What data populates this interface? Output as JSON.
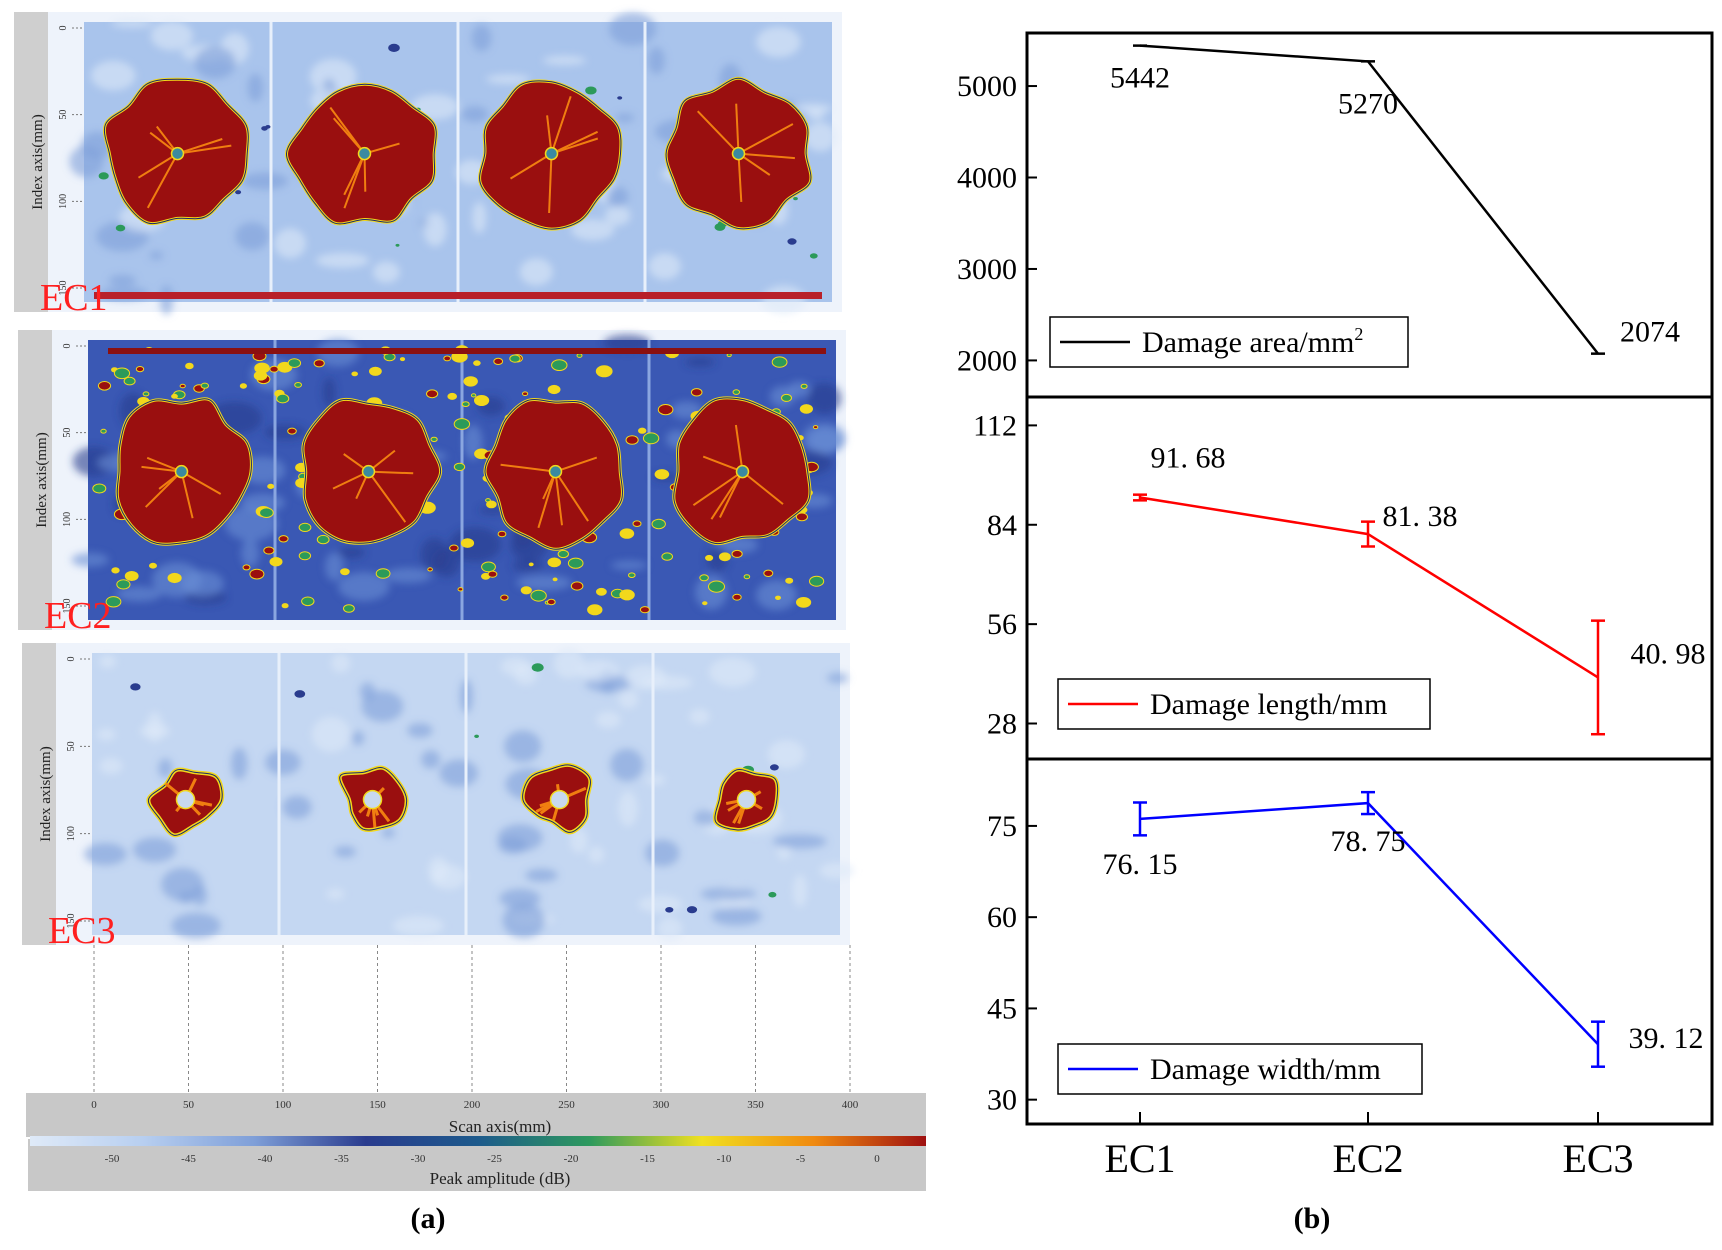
{
  "panel_a": {
    "caption": "(a)",
    "scans": [
      {
        "label": "EC1",
        "y_axis_label": "Index axis(mm)",
        "y_ticks": [
          "0",
          "50",
          "100",
          "150"
        ],
        "variant": "large"
      },
      {
        "label": "EC2",
        "y_axis_label": "Index axis(mm)",
        "y_ticks": [
          "0",
          "50",
          "100",
          "150"
        ],
        "variant": "noisy"
      },
      {
        "label": "EC3",
        "y_axis_label": "Index axis(mm)",
        "y_ticks": [
          "0",
          "50",
          "100",
          "150"
        ],
        "variant": "small"
      }
    ],
    "scan_axis": {
      "label": "Scan axis(mm)",
      "ticks": [
        "0",
        "50",
        "100",
        "150",
        "200",
        "250",
        "300",
        "350",
        "400"
      ]
    },
    "amplitude_axis": {
      "label": "Peak amplitude (dB)",
      "ticks": [
        "-50",
        "-45",
        "-40",
        "-35",
        "-30",
        "-25",
        "-20",
        "-15",
        "-10",
        "-5",
        "0"
      ]
    },
    "colormap": [
      "#dfeaf8",
      "#b8cff0",
      "#7f9fd8",
      "#2a3c8e",
      "#1d5a8c",
      "#2e9a5e",
      "#f0e020",
      "#f08a10",
      "#9e1010"
    ],
    "label_color": "#ff2020"
  },
  "panel_b": {
    "caption": "(b)"
  },
  "chart_data": [
    {
      "type": "line",
      "categories": [
        "EC1",
        "EC2",
        "EC3"
      ],
      "series": [
        {
          "name": "Damage area/mm",
          "values": [
            5442,
            5270,
            2074
          ],
          "error": [
            0,
            0,
            0
          ],
          "color": "#000000"
        }
      ],
      "data_labels": [
        "5442",
        "5270",
        "2074"
      ],
      "legend": {
        "text": "Damage area/mm",
        "superscript": "2",
        "placement": "bottom-left"
      },
      "yticks": [
        2000,
        3000,
        4000,
        5000
      ],
      "ytick_labels": [
        "2000",
        "3000",
        "4000",
        "5000"
      ],
      "ylim": [
        1600,
        5580
      ]
    },
    {
      "type": "line",
      "categories": [
        "EC1",
        "EC2",
        "EC3"
      ],
      "series": [
        {
          "name": "Damage length/mm",
          "values": [
            91.68,
            81.38,
            40.98
          ],
          "error": [
            0.8,
            3.5,
            16
          ],
          "color": "#ff0000"
        }
      ],
      "data_labels": [
        "91. 68",
        "81. 38",
        "40. 98"
      ],
      "legend": {
        "text": "Damage length/mm",
        "superscript": "",
        "placement": "bottom-left"
      },
      "yticks": [
        28,
        56,
        84,
        112
      ],
      "ytick_labels": [
        "28",
        "56",
        "84",
        "112"
      ],
      "ylim": [
        18,
        120
      ]
    },
    {
      "type": "line",
      "categories": [
        "EC1",
        "EC2",
        "EC3"
      ],
      "series": [
        {
          "name": "Damage width/mm",
          "values": [
            76.15,
            78.75,
            39.12
          ],
          "error": [
            2.7,
            1.8,
            3.7
          ],
          "color": "#0000ff"
        }
      ],
      "data_labels": [
        "76. 15",
        "78. 75",
        "39. 12"
      ],
      "legend": {
        "text": "Damage width/mm",
        "superscript": "",
        "placement": "bottom-left"
      },
      "yticks": [
        30,
        45,
        60,
        75
      ],
      "ytick_labels": [
        "30",
        "45",
        "60",
        "75"
      ],
      "ylim": [
        26,
        86
      ],
      "xticks": [
        "EC1",
        "EC2",
        "EC3"
      ]
    }
  ]
}
